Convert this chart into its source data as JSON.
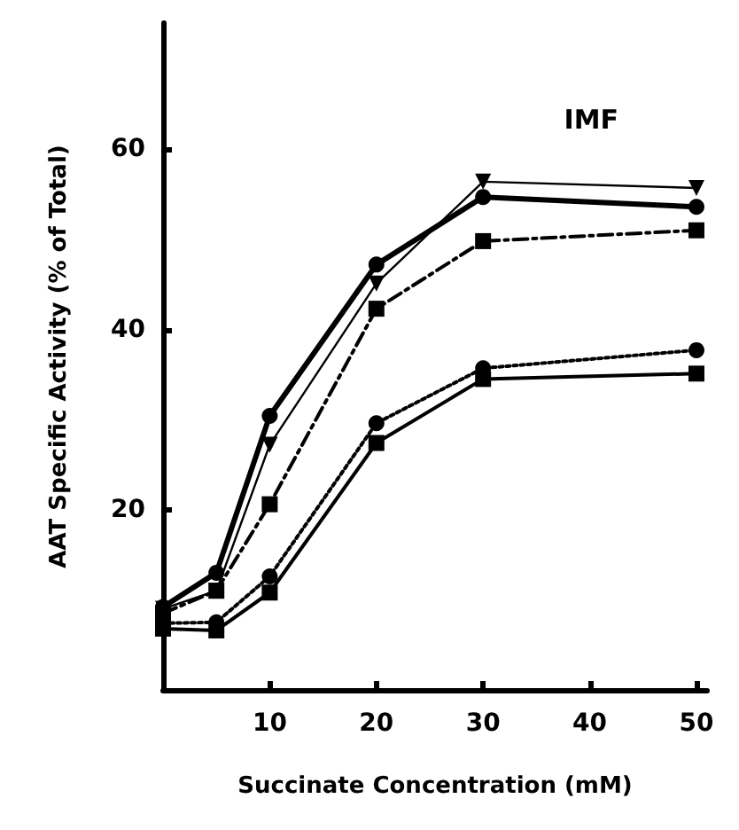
{
  "chart_data": {
    "type": "line",
    "xlabel": "Succinate Concentration (mM)",
    "ylabel": "AAT Specific Activity (% of Total)",
    "annotations": [
      "IMF"
    ],
    "x": [
      0,
      5,
      10,
      20,
      30,
      50
    ],
    "xlim": [
      0,
      51
    ],
    "xticks": [
      10,
      20,
      30,
      40,
      50
    ],
    "ylim": [
      0,
      74
    ],
    "yticks": [
      20,
      40,
      60
    ],
    "grid": false,
    "series": [
      {
        "color": "#000000",
        "marker": "circle",
        "line_style": "solid",
        "values": [
          9.2,
          13,
          30.4,
          47.2,
          54.7,
          53.6
        ]
      },
      {
        "color": "#000000",
        "marker": "triangle",
        "line_style": "solid",
        "values": [
          9,
          11,
          27.2,
          45.1,
          56.4,
          55.7
        ]
      },
      {
        "color": "#000000",
        "marker": "square",
        "line_style": "dashed",
        "values": [
          8.5,
          11,
          20.6,
          42.3,
          49.8,
          51
        ]
      },
      {
        "color": "#000000",
        "marker": "circle",
        "line_style": "dotted",
        "values": [
          7.4,
          7.5,
          12.6,
          29.6,
          35.7,
          37.7
        ]
      },
      {
        "color": "#000000",
        "marker": "square",
        "line_style": "solid",
        "values": [
          6.8,
          6.6,
          10.8,
          27.4,
          34.5,
          35.1
        ]
      }
    ]
  }
}
